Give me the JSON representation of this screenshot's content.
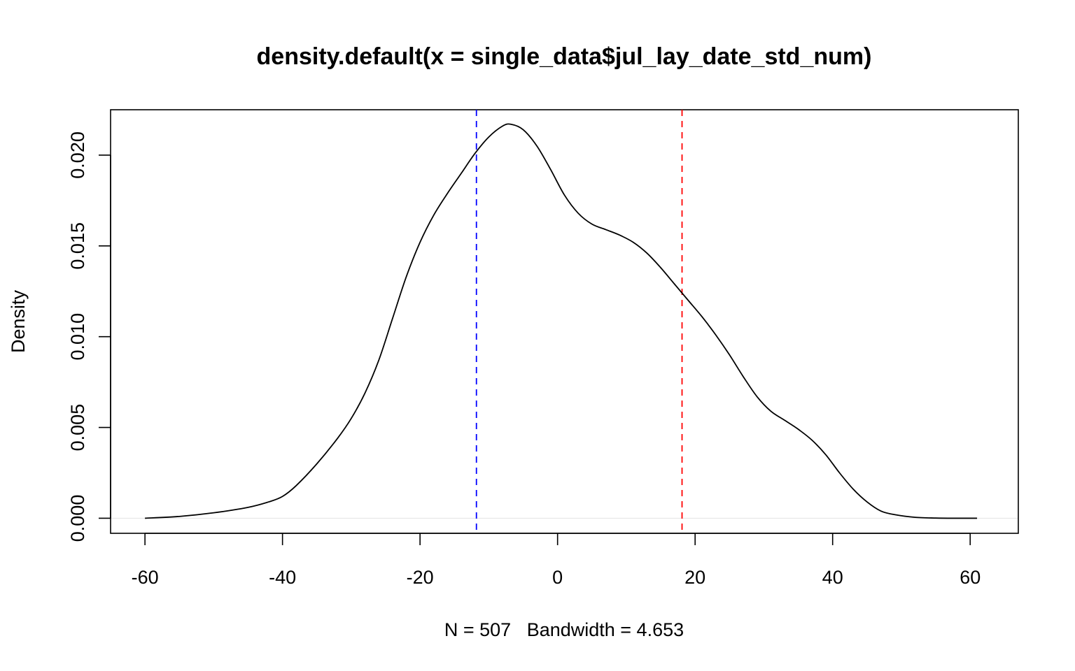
{
  "chart_data": {
    "type": "line",
    "title": "density.default(x = single_data$jul_lay_date_std_num)",
    "xlabel": "N = 507   Bandwidth = 4.653",
    "ylabel": "Density",
    "xlim": [
      -65,
      67
    ],
    "ylim": [
      -0.00083,
      0.0225
    ],
    "x_ticks": [
      -60,
      -40,
      -20,
      0,
      20,
      40,
      60
    ],
    "x_tick_labels": [
      "-60",
      "-40",
      "-20",
      "0",
      "20",
      "40",
      "60"
    ],
    "y_ticks": [
      0.0,
      0.005,
      0.01,
      0.015,
      0.02
    ],
    "y_tick_labels": [
      "0.000",
      "0.005",
      "0.010",
      "0.015",
      "0.020"
    ],
    "grid": false,
    "baseline": 0,
    "series": [
      {
        "color": "#000000",
        "x": [
          -60,
          -55,
          -50,
          -45,
          -42,
          -40,
          -38,
          -35,
          -32,
          -30,
          -28,
          -26,
          -24,
          -22,
          -20,
          -18,
          -16,
          -14,
          -12,
          -10,
          -8,
          -6.8,
          -5,
          -3,
          -1,
          1,
          3,
          5,
          7,
          9,
          11,
          13,
          15,
          17,
          19,
          21,
          23,
          25,
          27,
          29,
          31,
          33,
          35,
          37,
          39,
          41,
          43,
          45,
          47,
          49,
          52,
          55,
          58,
          61
        ],
        "y": [
          0.0,
          0.0001,
          0.0003,
          0.0006,
          0.0009,
          0.0012,
          0.0018,
          0.003,
          0.0044,
          0.0055,
          0.0069,
          0.0087,
          0.011,
          0.0133,
          0.0152,
          0.0167,
          0.0179,
          0.019,
          0.0201,
          0.021,
          0.0216,
          0.0217,
          0.0214,
          0.0205,
          0.0192,
          0.0178,
          0.0168,
          0.0162,
          0.0159,
          0.0156,
          0.0152,
          0.0146,
          0.0138,
          0.0129,
          0.012,
          0.0111,
          0.0101,
          0.009,
          0.0078,
          0.0067,
          0.0059,
          0.0054,
          0.0049,
          0.0043,
          0.0035,
          0.0025,
          0.0016,
          0.0009,
          0.0004,
          0.0002,
          5e-05,
          1e-05,
          0.0,
          0.0
        ]
      }
    ],
    "vlines": [
      {
        "x": -11.8,
        "color": "#0000ff",
        "style": "dashed"
      },
      {
        "x": 18.1,
        "color": "#ff0000",
        "style": "dashed"
      }
    ]
  }
}
